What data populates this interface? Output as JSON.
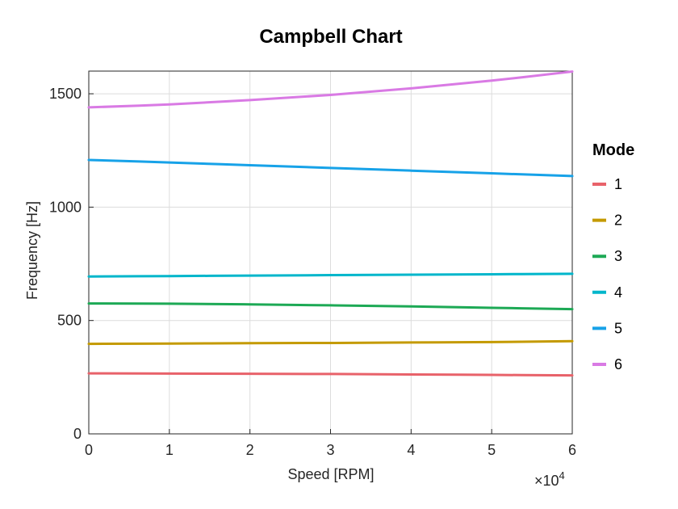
{
  "chart_data": {
    "type": "line",
    "title": "Campbell Chart",
    "xlabel": "Speed [RPM]",
    "ylabel": "Frequency [Hz]",
    "x_exponent_prefix": "×10",
    "x_exponent_power": "4",
    "xlim": [
      0,
      60000
    ],
    "ylim": [
      0,
      1600
    ],
    "x_ticks": [
      0,
      10000,
      20000,
      30000,
      40000,
      50000,
      60000
    ],
    "x_tick_labels": [
      "0",
      "1",
      "2",
      "3",
      "4",
      "5",
      "6"
    ],
    "y_ticks": [
      0,
      500,
      1000,
      1500
    ],
    "y_tick_labels": [
      "0",
      "500",
      "1000",
      "1500"
    ],
    "grid": true,
    "legend_title": "Mode",
    "legend_position": "right",
    "x": [
      0,
      10000,
      20000,
      30000,
      40000,
      50000,
      60000
    ],
    "series": [
      {
        "name": "1",
        "color": "#E8626A",
        "values": [
          267,
          266,
          265,
          264,
          262,
          260,
          258
        ]
      },
      {
        "name": "2",
        "color": "#C49A00",
        "values": [
          397,
          398,
          400,
          401,
          403,
          405,
          409
        ]
      },
      {
        "name": "3",
        "color": "#1DA955",
        "values": [
          575,
          574,
          571,
          567,
          562,
          556,
          550
        ]
      },
      {
        "name": "4",
        "color": "#00B6CB",
        "values": [
          694,
          696,
          698,
          700,
          702,
          704,
          706
        ]
      },
      {
        "name": "5",
        "color": "#17A2E8",
        "values": [
          1208,
          1197,
          1185,
          1173,
          1161,
          1149,
          1137
        ]
      },
      {
        "name": "6",
        "color": "#D97AE4",
        "values": [
          1440,
          1453,
          1472,
          1495,
          1524,
          1558,
          1598
        ]
      }
    ]
  }
}
